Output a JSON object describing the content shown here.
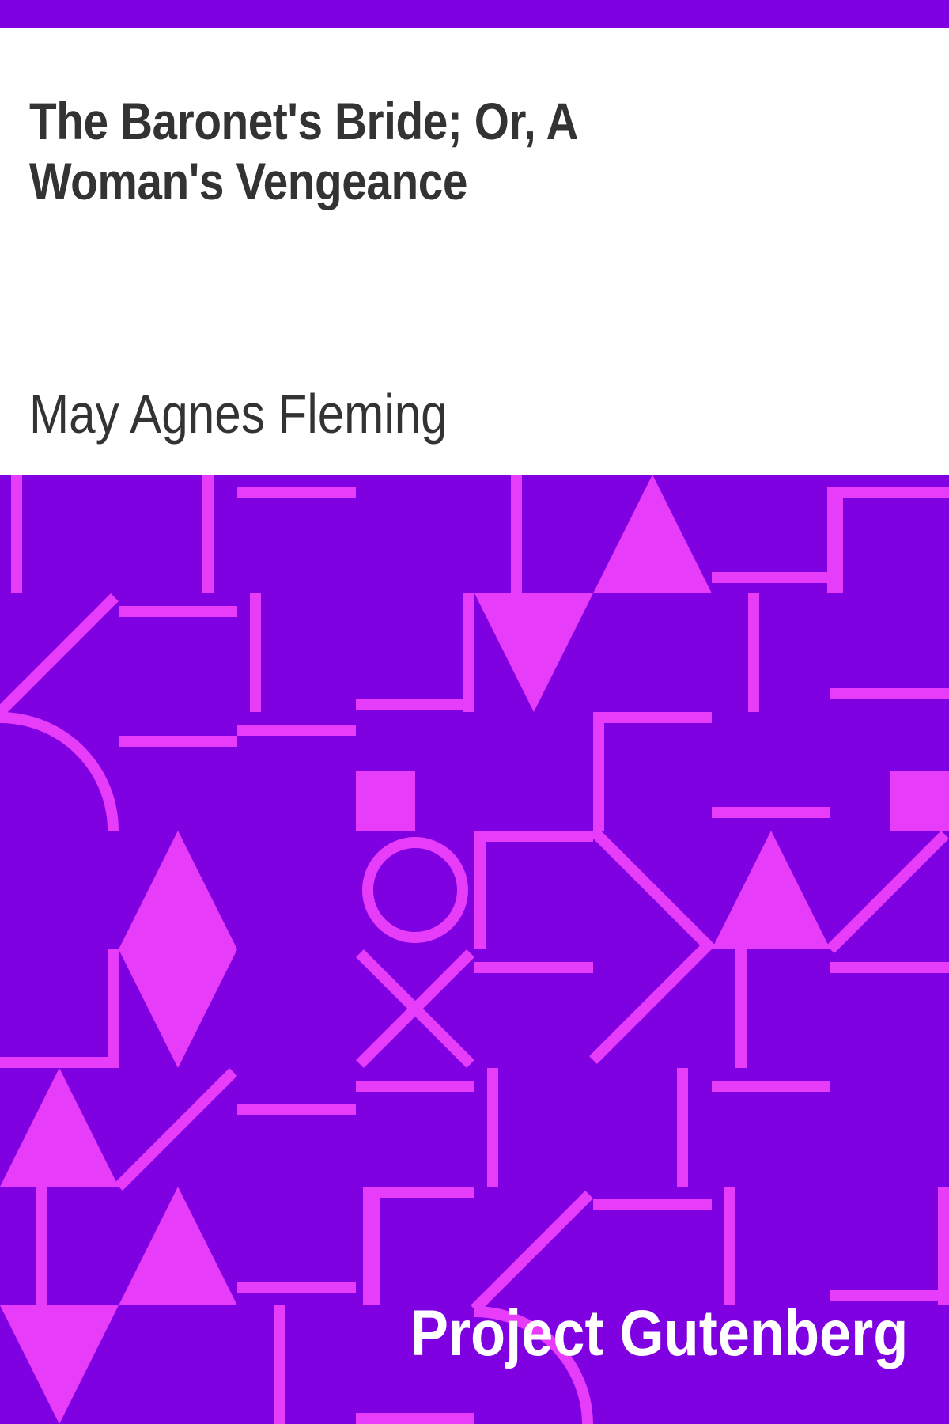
{
  "cover": {
    "title": "The Baronet's Bride; Or, A Woman's Vengeance",
    "author": "May Agnes Fleming",
    "publisher": "Project Gutenberg"
  },
  "colors": {
    "background_purple": "#7f00e0",
    "pattern_magenta": "#e83cfb",
    "text_dark": "#333333",
    "text_light": "#ffffff",
    "title_background": "#ffffff"
  }
}
